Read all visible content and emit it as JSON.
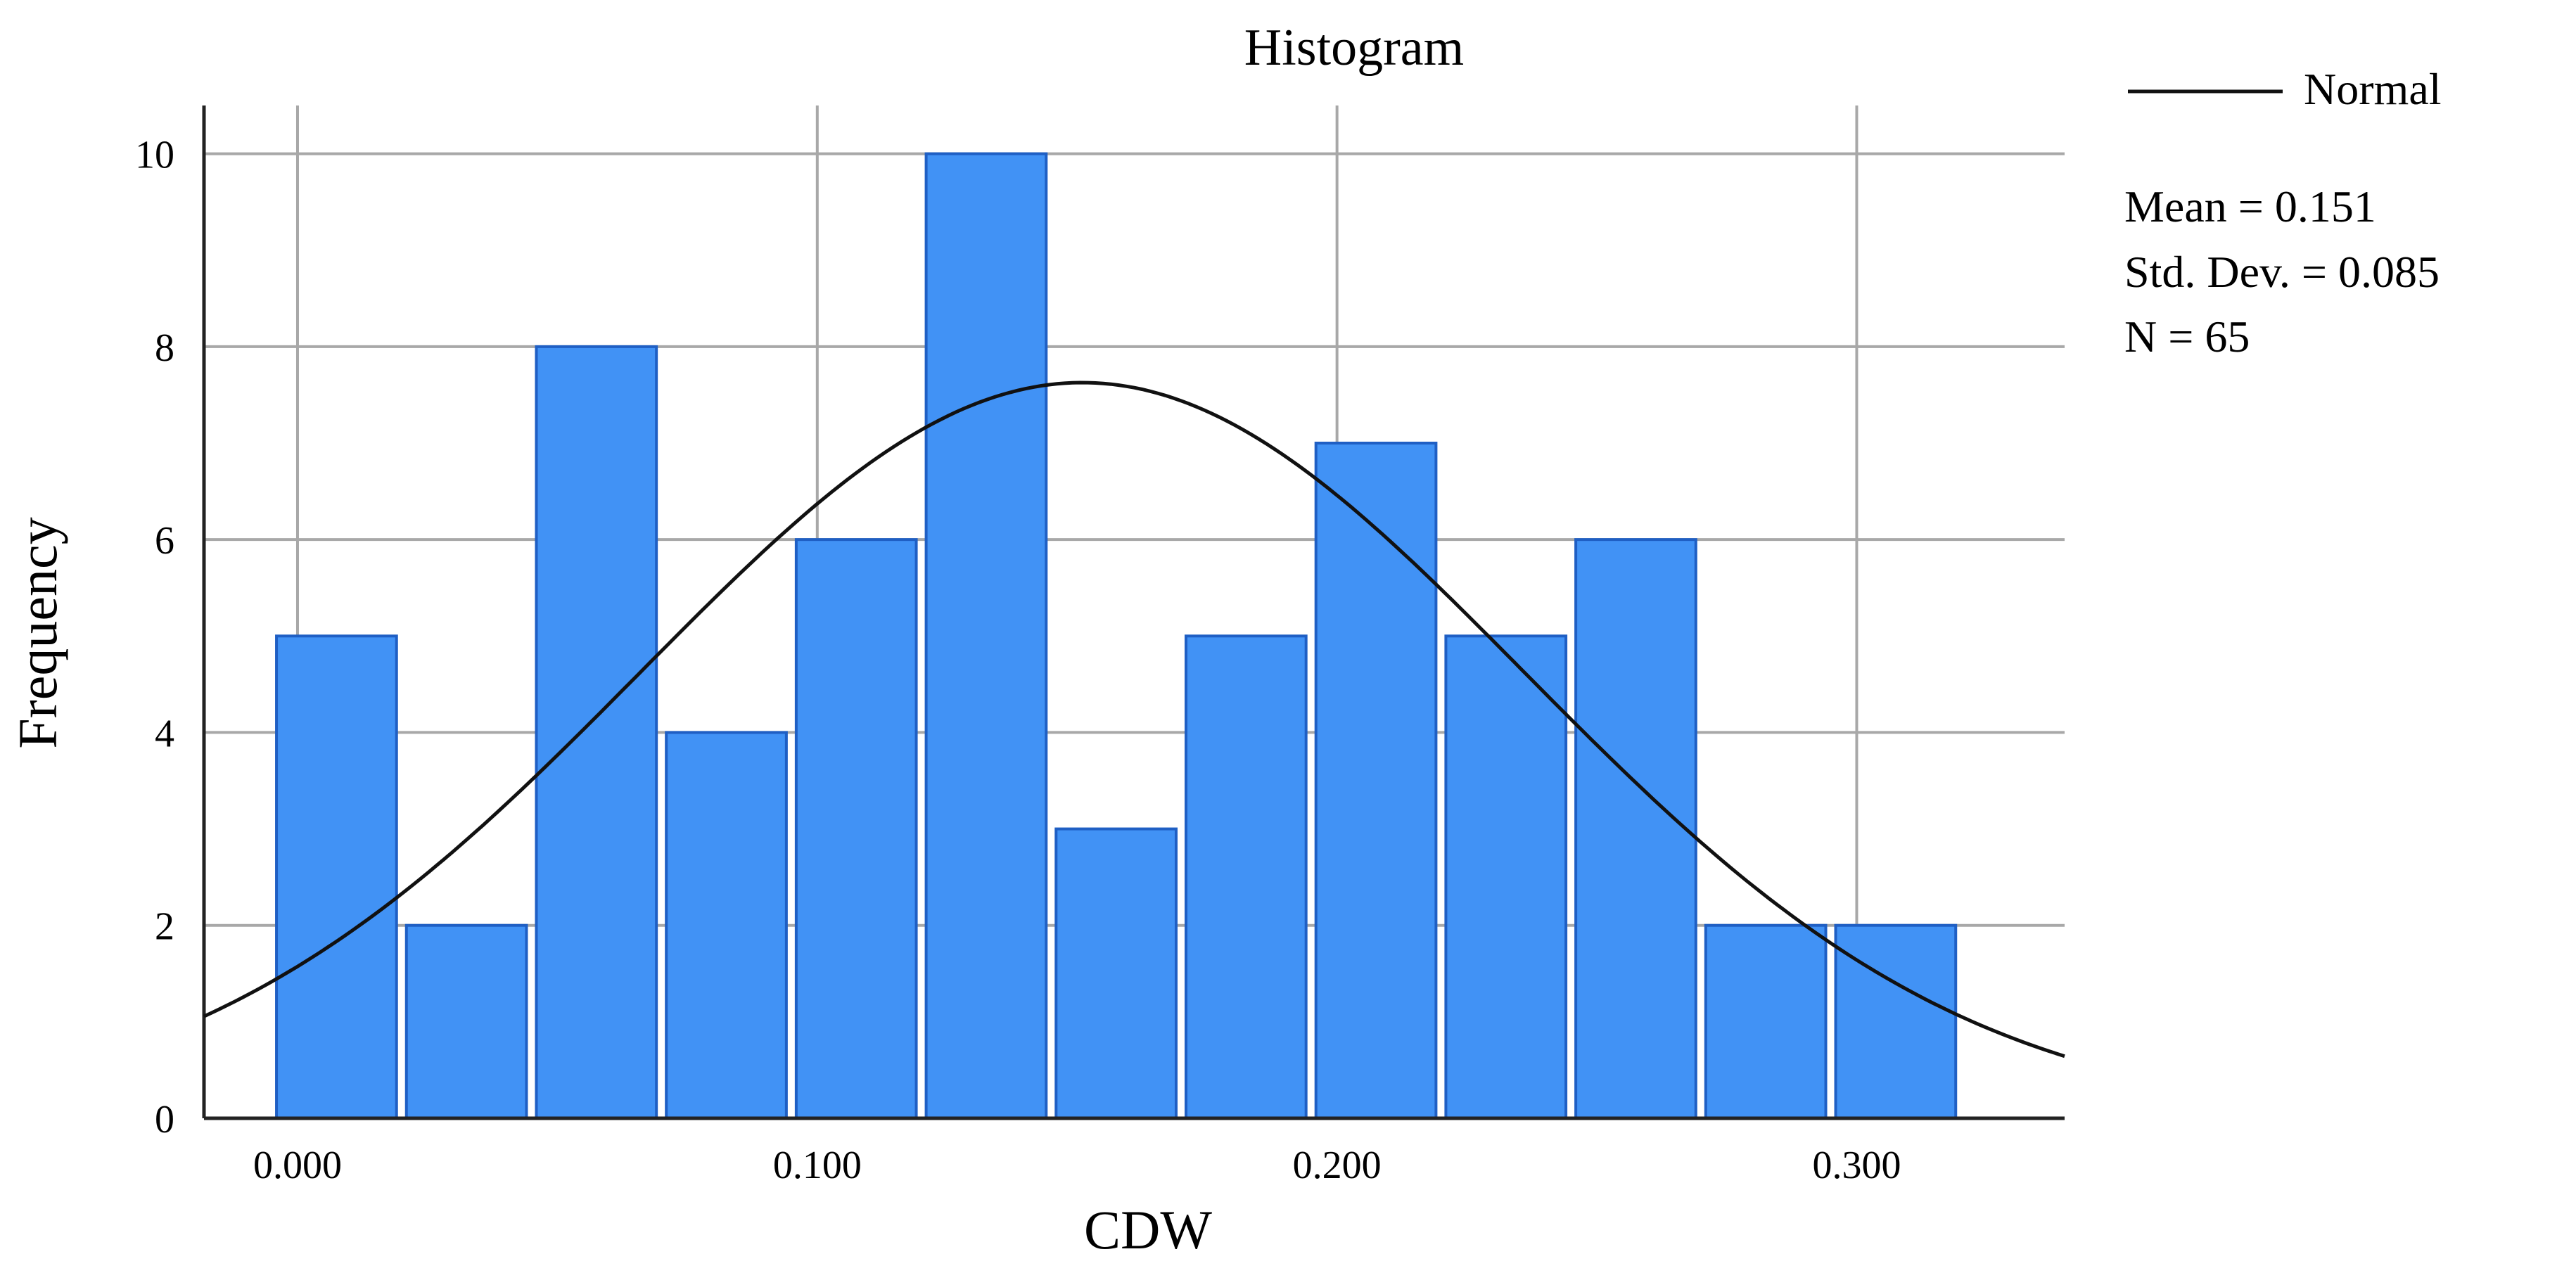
{
  "chart_data": {
    "type": "bar",
    "title": "Histogram",
    "xlabel": "CDW",
    "ylabel": "Frequency",
    "bin_width": 0.025,
    "bin_starts": [
      -0.005,
      0.02,
      0.045,
      0.07,
      0.095,
      0.12,
      0.145,
      0.17,
      0.195,
      0.22,
      0.245,
      0.27,
      0.295
    ],
    "values": [
      5,
      2,
      8,
      4,
      6,
      10,
      3,
      5,
      7,
      5,
      6,
      2,
      2
    ],
    "xlim": [
      -0.018,
      0.34
    ],
    "ylim": [
      0,
      10.5
    ],
    "x_ticks": [
      0.0,
      0.1,
      0.2,
      0.3
    ],
    "x_tick_labels": [
      "0.000",
      "0.100",
      "0.200",
      "0.300"
    ],
    "y_ticks": [
      0,
      2,
      4,
      6,
      8,
      10
    ],
    "y_tick_labels": [
      "0",
      "2",
      "4",
      "6",
      "8",
      "10"
    ],
    "grid": true,
    "bar_color": "#4192F5",
    "bar_edge_color": "#1F5FC4",
    "normal_curve": {
      "label": "Normal",
      "mean": 0.151,
      "std": 0.085,
      "n": 65
    },
    "legend": {
      "placement": "top-right",
      "entries": [
        "Normal"
      ]
    },
    "stats_text": [
      "Mean = 0.151",
      "Std. Dev. = 0.085",
      "N = 65"
    ]
  }
}
